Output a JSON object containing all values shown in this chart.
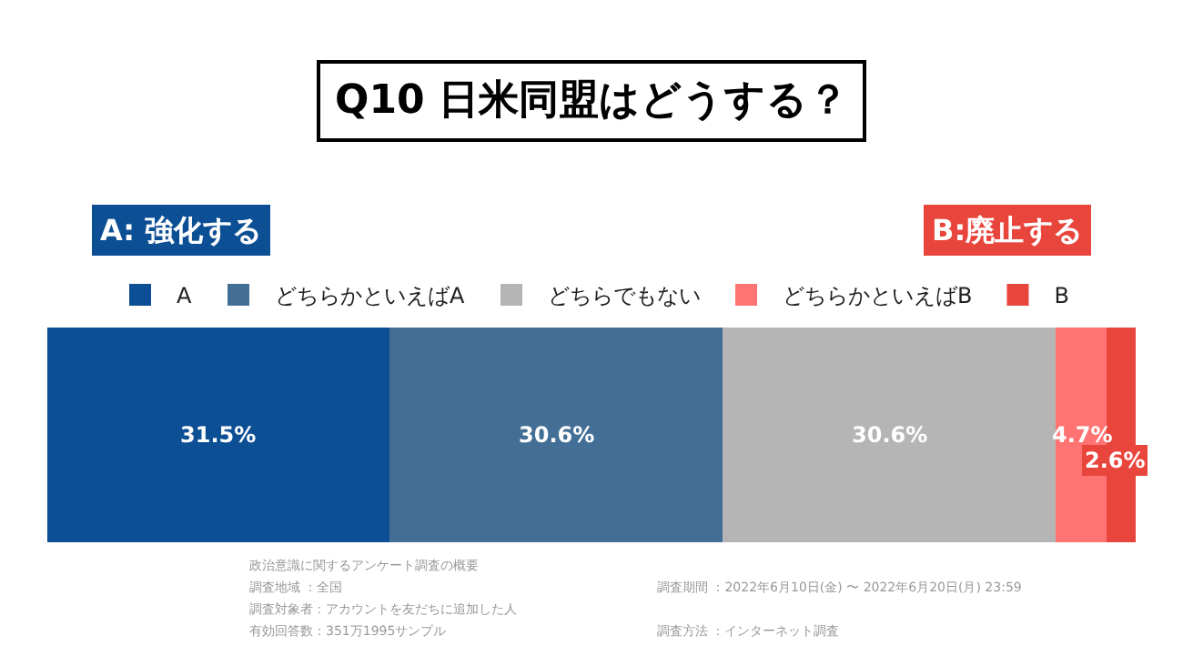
{
  "chart_data": {
    "type": "bar",
    "orientation": "horizontal",
    "stacked": true,
    "title": "Q10 日米同盟はどうする？",
    "categories": [
      null
    ],
    "legend": "top",
    "series": [
      {
        "name": "A",
        "color": "#0d4f94",
        "values": [
          31.5
        ],
        "value_labels": [
          "31.5%"
        ]
      },
      {
        "name": "どちらかといえばA",
        "color": "#436f96",
        "values": [
          30.6
        ],
        "value_labels": [
          "30.6%"
        ]
      },
      {
        "name": "どちらでもない",
        "color": "#b5b5b5",
        "values": [
          30.6
        ],
        "value_labels": [
          "30.6%"
        ]
      },
      {
        "name": "どちらかといえばB",
        "color": "#ff7373",
        "values": [
          4.7
        ],
        "value_labels": [
          "4.7%"
        ]
      },
      {
        "name": "B",
        "color": "#e8453c",
        "values": [
          2.6
        ],
        "value_labels": [
          "2.6%"
        ]
      }
    ],
    "annotations": [
      "A: 強化する",
      "B:廃止する",
      "政治意識に関するアンケート調査の概要",
      "調査地域 ：全国",
      "調査対象者：アカウントを友だちに追加した人",
      "有効回答数：351万1995サンプル",
      "調査期間 ：2022年6月10日(金) 〜 2022年6月20日(月) 23:59",
      "調査方法 ：インターネット調査"
    ]
  }
}
